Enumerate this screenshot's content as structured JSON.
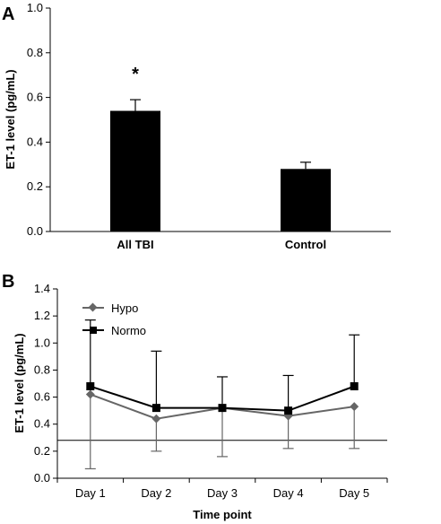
{
  "chart_data": [
    {
      "type": "bar",
      "panel": "A",
      "categories": [
        "All TBI",
        "Control"
      ],
      "values": [
        0.54,
        0.28
      ],
      "errors": [
        0.05,
        0.03
      ],
      "ylabel": "ET-1 level (pg/mL)",
      "xlabel": "",
      "ylim": [
        0,
        1.0
      ],
      "yticks": [
        "0.0",
        "0.2",
        "0.4",
        "0.6",
        "0.8",
        "1.0"
      ],
      "annotation": "*",
      "bar_color": "#000000"
    },
    {
      "type": "line",
      "panel": "B",
      "categories": [
        "Day 1",
        "Day 2",
        "Day 3",
        "Day 4",
        "Day 5"
      ],
      "xlabel": "Time point",
      "ylabel": "ET-1 level (pg/mL)",
      "ylim": [
        0,
        1.4
      ],
      "yticks": [
        "0.0",
        "0.2",
        "0.4",
        "0.6",
        "0.8",
        "1.0",
        "1.2",
        "1.4"
      ],
      "reference_line": 0.28,
      "legend_position": "top-left",
      "series": [
        {
          "name": "Hypo",
          "values": [
            0.62,
            0.44,
            0.52,
            0.46,
            0.53
          ],
          "error_low": [
            0.07,
            0.2,
            0.16,
            0.22,
            0.22
          ],
          "marker": "diamond",
          "color": "#666666"
        },
        {
          "name": "Normo",
          "values": [
            0.68,
            0.52,
            0.52,
            0.5,
            0.68
          ],
          "error_high": [
            1.17,
            0.94,
            0.75,
            0.76,
            1.06
          ],
          "marker": "square",
          "color": "#000000"
        }
      ]
    }
  ]
}
